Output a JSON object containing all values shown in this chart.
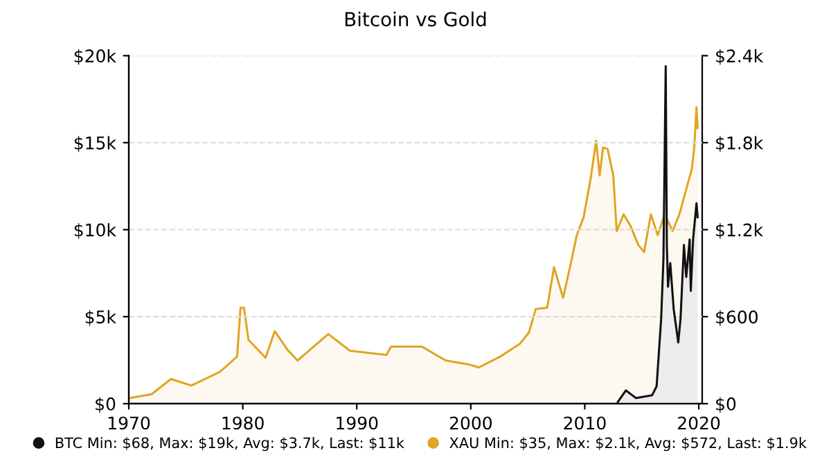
{
  "chart_data": {
    "type": "area",
    "title": "Bitcoin vs Gold",
    "xlim": [
      1970,
      2020.3
    ],
    "xticks": [
      1970,
      1980,
      1990,
      2000,
      2010,
      2020
    ],
    "ylim": [
      0,
      20000
    ],
    "yticks": [
      {
        "value": 0,
        "label": "$0"
      },
      {
        "value": 5000,
        "label": "$5k"
      },
      {
        "value": 10000,
        "label": "$10k"
      },
      {
        "value": 15000,
        "label": "$15k"
      },
      {
        "value": 20000,
        "label": "$20k"
      }
    ],
    "y2lim": [
      0,
      2400
    ],
    "y2ticks": [
      {
        "value": 0,
        "label": "$0"
      },
      {
        "value": 600,
        "label": "$600"
      },
      {
        "value": 1200,
        "label": "$1.2k"
      },
      {
        "value": 1800,
        "label": "$1.8k"
      },
      {
        "value": 2400,
        "label": "$2.4k"
      }
    ],
    "grid": "y",
    "legend": "bottom",
    "marker": "none",
    "series": [
      {
        "name": "BTC Min: $68, Max: $19k, Avg: $3.7k, Last: $11k",
        "color": "#111111",
        "axis": "y",
        "x": [
          2012.9,
          2013.6,
          2014.5,
          2015.9,
          2016.3,
          2016.7,
          2016.9,
          2017.1,
          2017.2,
          2017.3,
          2017.5,
          2017.8,
          2018.2,
          2018.4,
          2018.7,
          2018.9,
          2019.2,
          2019.3,
          2019.5,
          2019.8,
          2019.9
        ],
        "values": [
          100,
          760,
          320,
          480,
          1000,
          4880,
          8320,
          19400,
          9120,
          6720,
          8080,
          5440,
          3520,
          4880,
          9120,
          7280,
          9440,
          6480,
          9440,
          11520,
          10720
        ]
      },
      {
        "name": "XAU Min: $35, Max: $2.1k, Avg: $572, Last: $1.9k",
        "color": "#e0a526",
        "axis": "y2",
        "x": [
          1970,
          1972,
          1973.7,
          1975.5,
          1978,
          1979.5,
          1979.8,
          1980.1,
          1980.5,
          1982.0,
          1982.8,
          1983.9,
          1984.8,
          1987.5,
          1989.4,
          1992.6,
          1993.0,
          1995.7,
          1997.8,
          1999.9,
          2000.7,
          2002.6,
          2004.3,
          2005.1,
          2005.7,
          2006.7,
          2007.3,
          2008.1,
          2008.7,
          2009.3,
          2009.9,
          2010.5,
          2011.0,
          2011.3,
          2011.6,
          2012.0,
          2012.5,
          2012.8,
          2013.4,
          2014.0,
          2014.7,
          2015.2,
          2015.8,
          2016.4,
          2017.0,
          2017.7,
          2018.3,
          2018.9,
          2019.4,
          2019.6,
          2019.8,
          2019.9
        ],
        "values": [
          38,
          65,
          170,
          125,
          220,
          325,
          662,
          662,
          440,
          317,
          500,
          374,
          298,
          480,
          365,
          336,
          394,
          394,
          298,
          269,
          250,
          326,
          413,
          490,
          653,
          662,
          941,
          730,
          941,
          1162,
          1286,
          1546,
          1814,
          1574,
          1766,
          1757,
          1574,
          1190,
          1306,
          1229,
          1094,
          1046,
          1306,
          1162,
          1306,
          1190,
          1306,
          1478,
          1622,
          1766,
          2045,
          1900
        ]
      }
    ]
  }
}
